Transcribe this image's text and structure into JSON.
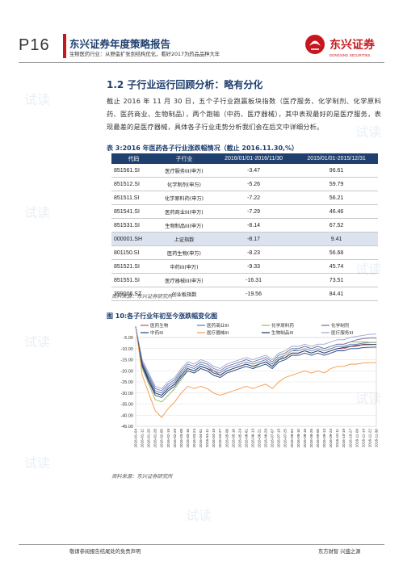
{
  "header": {
    "page": "P16",
    "title": "东兴证券年度策略报告",
    "subtitle": "生物医药行业：从野蛮扩张到结构优化，看好2017为药品品种大年",
    "logo_text": "东兴证券",
    "logo_sub": "DONGXING SECURITIES"
  },
  "section": {
    "title": "1.2 子行业运行回顾分析：略有分化",
    "paragraph": "截止 2016 年 11 月 30 日，五个子行业跑赢板块指数（医疗服务、化学制剂、化学原料药、医药商业、生物制品），两个跑输（中药、医疗器械），其中表现最好的是医疗服务，表现最差的是医疗器械，具体各子行业走势分析我们会在后文中详细分析。"
  },
  "table": {
    "caption_prefix": "表 3:",
    "caption_text": "2016 年医药各子行业涨跌幅情况（截止 2016.11.30,%）",
    "headers": [
      "代码",
      "子行业",
      "2016/01/01-2016/11/30",
      "2015/01/01-2015/12/31"
    ],
    "rows": [
      {
        "code": "851561.SI",
        "name": "医疗服务III(申万)",
        "v1": "-3.47",
        "v2": "96.61"
      },
      {
        "code": "851512.SI",
        "name": "化学制剂(申万)",
        "v1": "-5.26",
        "v2": "59.79"
      },
      {
        "code": "851511.SI",
        "name": "化学原料药(申万)",
        "v1": "-7.22",
        "v2": "56.21"
      },
      {
        "code": "851541.SI",
        "name": "医药商业III(申万)",
        "v1": "-7.29",
        "v2": "46.46"
      },
      {
        "code": "851531.SI",
        "name": "生物制品III(申万)",
        "v1": "-8.14",
        "v2": "67.52"
      },
      {
        "code": "000001.SH",
        "name": "上证指数",
        "v1": "-8.17",
        "v2": "9.41"
      },
      {
        "code": "801150.SI",
        "name": "医药生物(申万)",
        "v1": "-8.23",
        "v2": "56.68"
      },
      {
        "code": "851521.SI",
        "name": "中药III(申万)",
        "v1": "-9.33",
        "v2": "45.74"
      },
      {
        "code": "851551.SI",
        "name": "医疗器械III(申万)",
        "v1": "-16.31",
        "v2": "73.51"
      },
      {
        "code": "399006.SZ",
        "name": "创业板指数",
        "v1": "-19.56",
        "v2": "84.41"
      }
    ],
    "source": "资料来源：东兴证券研究所"
  },
  "figure": {
    "caption_prefix": "图 10:",
    "caption_text": "各子行业年初至今涨跌幅变化图",
    "source": "资料来源：东兴证券研究所"
  },
  "chart_data": {
    "type": "line",
    "ylim": [
      -45,
      -5
    ],
    "y_ticks": [
      "-5.00",
      "-10.00",
      "-15.00",
      "-20.00",
      "-25.00",
      "-30.00",
      "-35.00",
      "-40.00",
      "-45.00"
    ],
    "x_ticks": [
      "2016-01-04",
      "2016-01-12",
      "2016-01-20",
      "2016-01-28",
      "2016-02-05",
      "2016-02-19",
      "2016-02-29",
      "2016-03-08",
      "2016-03-16",
      "2016-03-24",
      "2016-04-01",
      "2016-04-11",
      "2016-04-19",
      "2016-04-27",
      "2016-05-06",
      "2016-05-16",
      "2016-05-24",
      "2016-06-01",
      "2016-06-13",
      "2016-06-21",
      "2016-06-29",
      "2016-07-07",
      "2016-07-15",
      "2016-07-25",
      "2016-08-02",
      "2016-08-10",
      "2016-08-18",
      "2016-08-26",
      "2016-09-05",
      "2016-09-13",
      "2016-09-23",
      "2016-10-11",
      "2016-10-19",
      "2016-10-27",
      "2016-11-04",
      "2016-11-14",
      "2016-11-22",
      "2016-11-30"
    ],
    "grid": true,
    "legend_position": "top",
    "series": [
      {
        "name": "医药生物",
        "color": "#c0504d",
        "values": [
          0,
          -18,
          -24,
          -30,
          -31,
          -28,
          -26,
          -22,
          -19,
          -20,
          -18,
          -19,
          -20,
          -22,
          -20,
          -19,
          -18,
          -17,
          -18,
          -17,
          -16,
          -18,
          -15,
          -14,
          -12,
          -12,
          -11,
          -12,
          -11,
          -12,
          -11,
          -10,
          -10,
          -9,
          -9,
          -8,
          -8,
          -8.23
        ]
      },
      {
        "name": "医药商业III",
        "color": "#4a7ebb",
        "values": [
          0,
          -17,
          -23,
          -29,
          -30,
          -27,
          -25,
          -21,
          -18,
          -19,
          -17,
          -18,
          -20,
          -21,
          -19,
          -18,
          -17,
          -16,
          -17,
          -16,
          -15,
          -17,
          -14,
          -13,
          -11,
          -11,
          -10,
          -11,
          -10,
          -11,
          -10,
          -9,
          -9,
          -8,
          -8,
          -7.5,
          -7.3,
          -7.29
        ]
      },
      {
        "name": "化学原料药",
        "color": "#9bbb59",
        "values": [
          0,
          -19,
          -26,
          -33,
          -34,
          -31,
          -28,
          -24,
          -20,
          -21,
          -19,
          -20,
          -22,
          -23,
          -21,
          -20,
          -19,
          -18,
          -19,
          -17,
          -16,
          -18,
          -15,
          -13,
          -11,
          -10,
          -9,
          -10,
          -9,
          -10,
          -9,
          -8,
          -8,
          -7,
          -7,
          -7,
          -7.2,
          -7.22
        ]
      },
      {
        "name": "化学制剂",
        "color": "#8064a2",
        "values": [
          0,
          -16,
          -22,
          -28,
          -29,
          -26,
          -24,
          -20,
          -17,
          -18,
          -16,
          -17,
          -19,
          -20,
          -18,
          -17,
          -16,
          -15,
          -16,
          -15,
          -14,
          -16,
          -13,
          -12,
          -10,
          -10,
          -9,
          -10,
          -9,
          -10,
          -9,
          -8,
          -8,
          -7,
          -6,
          -5.5,
          -5.3,
          -5.26
        ]
      },
      {
        "name": "中药III",
        "color": "#1f3f8f",
        "values": [
          0,
          -18,
          -25,
          -31,
          -32,
          -29,
          -27,
          -23,
          -20,
          -21,
          -19,
          -20,
          -22,
          -23,
          -21,
          -20,
          -19,
          -18,
          -19,
          -18,
          -17,
          -19,
          -16,
          -15,
          -13,
          -13,
          -12,
          -13,
          -12,
          -13,
          -12,
          -11,
          -11,
          -10,
          -10,
          -9.5,
          -9.4,
          -9.33
        ]
      },
      {
        "name": "医疗器械III",
        "color": "#f79646",
        "values": [
          0,
          -22,
          -30,
          -38,
          -41,
          -37,
          -34,
          -30,
          -27,
          -28,
          -27,
          -28,
          -30,
          -31,
          -30,
          -29,
          -28,
          -27,
          -28,
          -27,
          -26,
          -28,
          -25,
          -23,
          -22,
          -21,
          -20,
          -21,
          -20,
          -21,
          -19,
          -18,
          -18,
          -17,
          -17,
          -16.5,
          -16.4,
          -16.31
        ]
      },
      {
        "name": "生物制品III",
        "color": "#17375e",
        "values": [
          0,
          -17,
          -24,
          -30,
          -31,
          -28,
          -26,
          -22,
          -19,
          -20,
          -18,
          -19,
          -21,
          -22,
          -20,
          -19,
          -18,
          -17,
          -18,
          -17,
          -16,
          -18,
          -15,
          -14,
          -12,
          -12,
          -11,
          -12,
          -11,
          -12,
          -11,
          -10,
          -9.5,
          -9,
          -8.5,
          -8.3,
          -8.2,
          -8.14
        ]
      },
      {
        "name": "医疗服务III",
        "color": "#93a9cf",
        "values": [
          0,
          -15,
          -21,
          -27,
          -28,
          -25,
          -23,
          -19,
          -16,
          -17,
          -15,
          -16,
          -18,
          -19,
          -17,
          -16,
          -15,
          -14,
          -15,
          -14,
          -13,
          -15,
          -12,
          -11,
          -9,
          -9,
          -8,
          -9,
          -8,
          -8,
          -7,
          -6,
          -6,
          -5,
          -4.5,
          -4,
          -3.6,
          -3.47
        ]
      }
    ]
  },
  "footer": {
    "left": "敬请参阅报告结尾处的免责声明",
    "right": "东方财智 兴盛之源"
  },
  "watermark": "试读"
}
